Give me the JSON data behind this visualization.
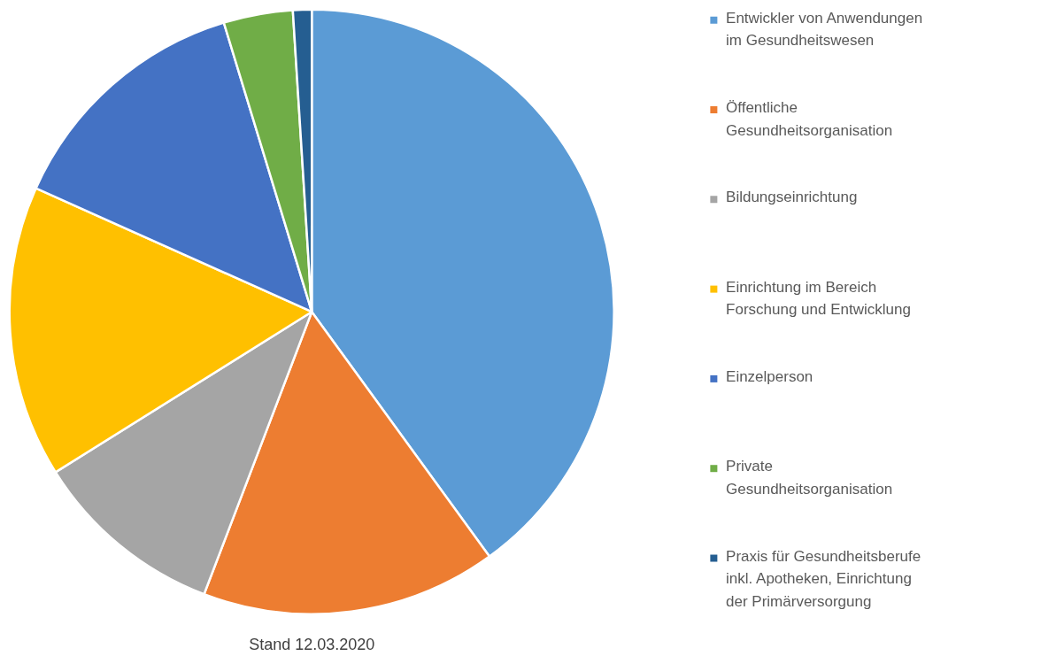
{
  "chart_data": {
    "type": "pie",
    "categories": [
      "Entwickler von Anwendungen im Gesundheitswesen",
      "Öffentliche Gesundheitsorganisation",
      "Bildungseinrichtung",
      "Einrichtung im Bereich Forschung und Entwicklung",
      "Einzelperson",
      "Private Gesundheitsorganisation",
      "Praxis für Gesundheitsberufe inkl. Apotheken, Einrichtung der Primärversorgung"
    ],
    "values": [
      40.0,
      15.8,
      10.3,
      15.6,
      13.6,
      3.7,
      1.0
    ],
    "colors": [
      "#5b9bd5",
      "#ed7d31",
      "#a5a5a5",
      "#ffc000",
      "#4472c4",
      "#70ad47",
      "#255e91"
    ],
    "legend": "right",
    "annotations": [
      "Stand 12.03.2020"
    ]
  }
}
